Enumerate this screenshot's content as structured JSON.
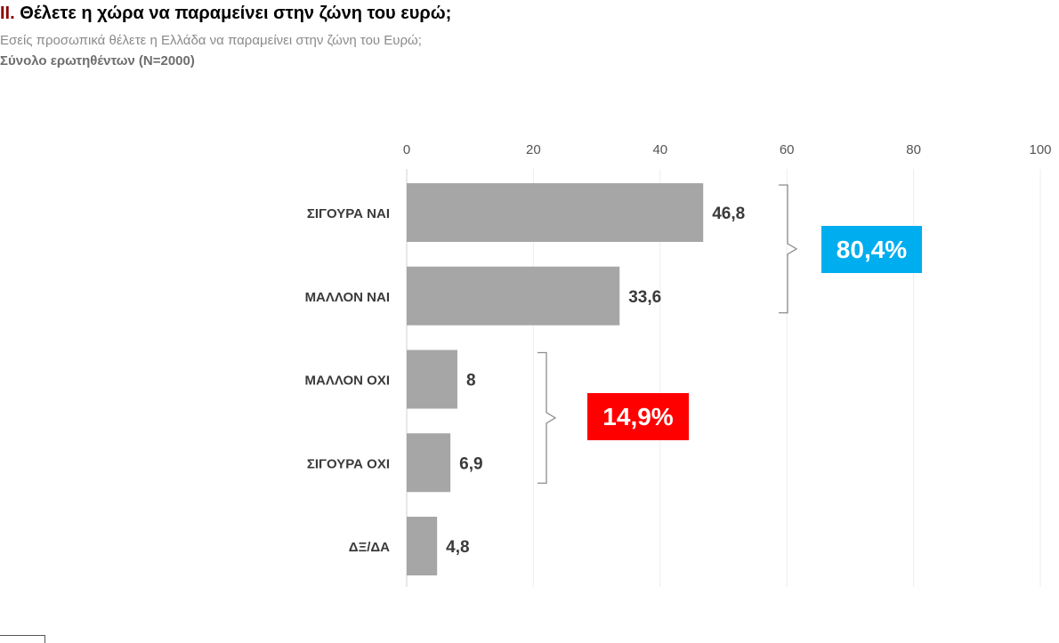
{
  "header": {
    "title_number": "II.",
    "title_text": " Θέλετε η χώρα να παραμείνει στην ζώνη του ευρώ;",
    "subtitle": "Εσείς προσωπικά θέλετε η Ελλάδα να παραμείνει στην ζώνη του Ευρώ;",
    "base": "Σύνολο ερωτηθέντων (N=2000)"
  },
  "chart_data": {
    "type": "bar",
    "orientation": "horizontal",
    "categories": [
      "ΣΙΓΟΥΡΑ ΝΑΙ",
      "ΜΑΛΛΟΝ ΝΑΙ",
      "ΜΑΛΛΟΝ ΟΧΙ",
      "ΣΙΓΟΥΡΑ ΟΧΙ",
      "ΔΞ/ΔΑ"
    ],
    "values": [
      46.8,
      33.6,
      8,
      6.9,
      4.8
    ],
    "value_labels": [
      "46,8",
      "33,6",
      "8",
      "6,9",
      "4,8"
    ],
    "xlim": [
      0,
      100
    ],
    "x_ticks": [
      0,
      20,
      40,
      60,
      80,
      100
    ],
    "axis_position": "top",
    "grid": true,
    "bar_color": "#a6a6a6",
    "annotations": [
      {
        "label": "80,4%",
        "groups": [
          "ΣΙΓΟΥΡΑ ΝΑΙ",
          "ΜΑΛΛΟΝ ΝΑΙ"
        ],
        "color": "#00aeef"
      },
      {
        "label": "14,9%",
        "groups": [
          "ΜΑΛΛΟΝ ΟΧΙ",
          "ΣΙΓΟΥΡΑ ΟΧΙ"
        ],
        "color": "#ff0000"
      }
    ]
  }
}
